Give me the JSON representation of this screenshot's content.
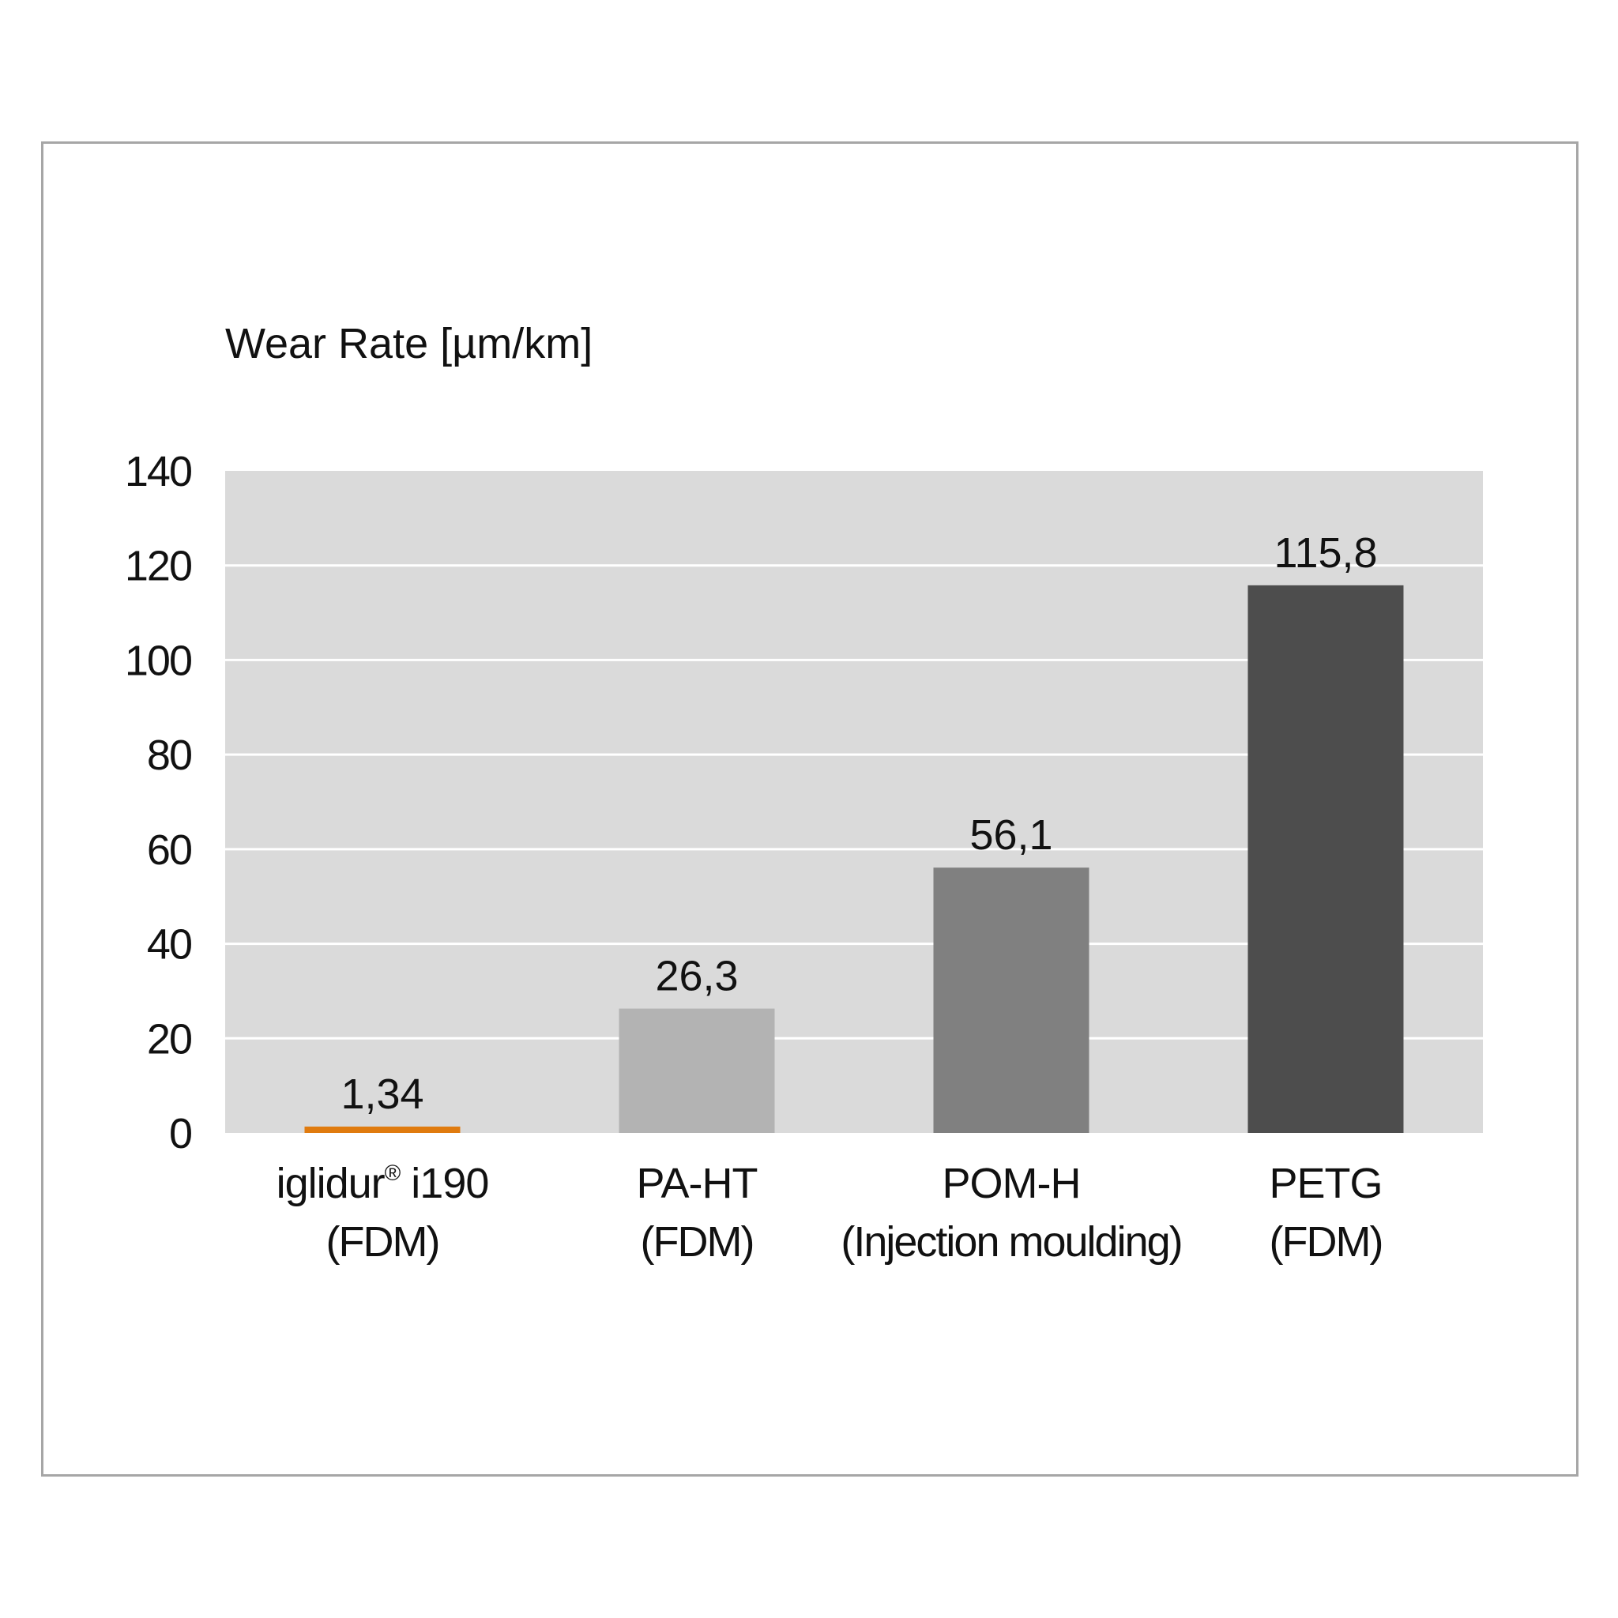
{
  "chart_data": {
    "type": "bar",
    "ylabel": "Wear Rate [µm/km]",
    "ylim": [
      0,
      140
    ],
    "yticks": [
      "0",
      "20",
      "40",
      "60",
      "80",
      "100",
      "120",
      "140"
    ],
    "ytick_values": [
      0,
      20,
      40,
      60,
      80,
      100,
      120,
      140
    ],
    "grid": true,
    "legend": "none",
    "categories": [
      {
        "line1": "iglidur",
        "reg": "®",
        "line1b": " i190",
        "line2": "(FDM)"
      },
      {
        "line1": "PA-HT",
        "line2": "(FDM)"
      },
      {
        "line1": "POM-H",
        "line2": "(Injection moulding)"
      },
      {
        "line1": "PETG",
        "line2": "(FDM)"
      }
    ],
    "values": [
      1.34,
      26.3,
      56.1,
      115.8
    ],
    "value_labels": [
      "1,34",
      "26,3",
      "56,1",
      "115,8"
    ],
    "colors": [
      "#e07b0f",
      "#b3b3b3",
      "#808080",
      "#4d4d4d"
    ],
    "plot_background": "#dadada",
    "gridline_color": "#ffffff"
  }
}
